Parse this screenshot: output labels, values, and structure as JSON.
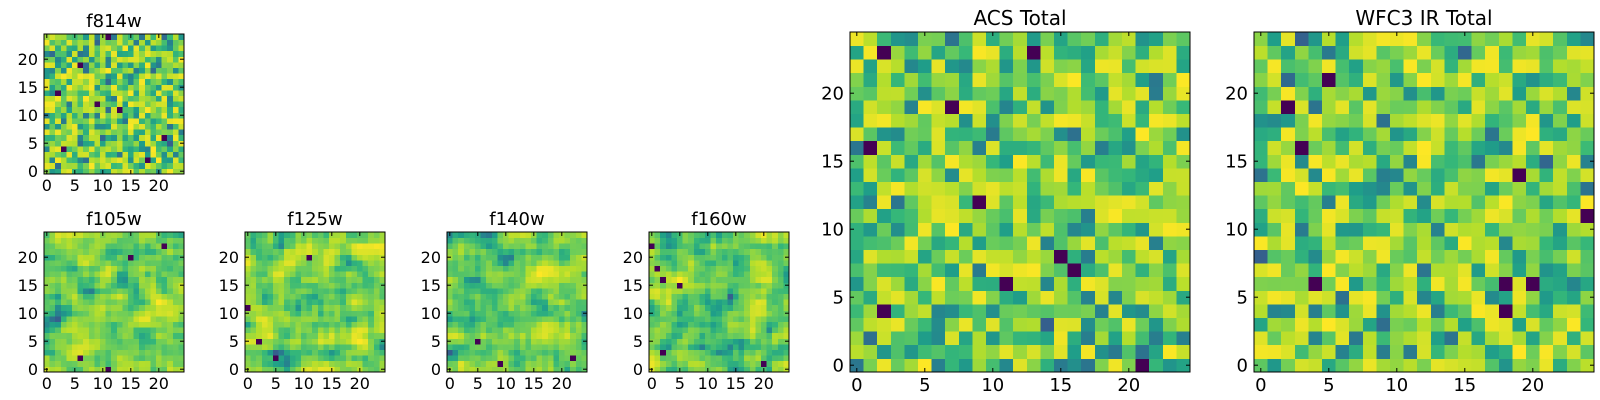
{
  "chart_data": [
    {
      "id": "f814w",
      "type": "heatmap",
      "title": "f814w",
      "xlim": [
        -0.5,
        24.5
      ],
      "ylim": [
        -0.5,
        24.5
      ],
      "xticks": [
        0,
        5,
        10,
        15,
        20
      ],
      "yticks": [
        0,
        5,
        10,
        15,
        20
      ],
      "grid_size": [
        25,
        25
      ],
      "colormap": "viridis",
      "seed": 814,
      "smooth": 0,
      "dark_pixels": [
        [
          3,
          4
        ],
        [
          9,
          12
        ],
        [
          13,
          11
        ],
        [
          21,
          6
        ],
        [
          6,
          19
        ],
        [
          18,
          2
        ],
        [
          11,
          24
        ],
        [
          2,
          14
        ]
      ]
    },
    {
      "id": "f105w",
      "type": "heatmap",
      "title": "f105w",
      "xlim": [
        -0.5,
        24.5
      ],
      "ylim": [
        -0.5,
        24.5
      ],
      "xticks": [
        0,
        5,
        10,
        15,
        20
      ],
      "yticks": [
        0,
        5,
        10,
        15,
        20
      ],
      "grid_size": [
        25,
        25
      ],
      "colormap": "viridis",
      "seed": 105,
      "smooth": 1,
      "dark_pixels": [
        [
          15,
          20
        ],
        [
          6,
          2
        ],
        [
          11,
          0
        ],
        [
          21,
          22
        ]
      ]
    },
    {
      "id": "f125w",
      "type": "heatmap",
      "title": "f125w",
      "xlim": [
        -0.5,
        24.5
      ],
      "ylim": [
        -0.5,
        24.5
      ],
      "xticks": [
        0,
        5,
        10,
        15,
        20
      ],
      "yticks": [
        0,
        5,
        10,
        15,
        20
      ],
      "grid_size": [
        25,
        25
      ],
      "colormap": "viridis",
      "seed": 125,
      "smooth": 1,
      "dark_pixels": [
        [
          11,
          20
        ],
        [
          2,
          5
        ],
        [
          5,
          2
        ],
        [
          0,
          11
        ]
      ]
    },
    {
      "id": "f140w",
      "type": "heatmap",
      "title": "f140w",
      "xlim": [
        -0.5,
        24.5
      ],
      "ylim": [
        -0.5,
        24.5
      ],
      "xticks": [
        0,
        5,
        10,
        15,
        20
      ],
      "yticks": [
        0,
        5,
        10,
        15,
        20
      ],
      "grid_size": [
        25,
        25
      ],
      "colormap": "viridis",
      "seed": 140,
      "smooth": 1,
      "dark_pixels": [
        [
          9,
          1
        ],
        [
          22,
          2
        ],
        [
          5,
          5
        ]
      ]
    },
    {
      "id": "f160w",
      "type": "heatmap",
      "title": "f160w",
      "xlim": [
        -0.5,
        24.5
      ],
      "ylim": [
        -0.5,
        24.5
      ],
      "xticks": [
        0,
        5,
        10,
        15,
        20
      ],
      "yticks": [
        0,
        5,
        10,
        15,
        20
      ],
      "grid_size": [
        25,
        25
      ],
      "colormap": "viridis",
      "seed": 160,
      "smooth": 1,
      "dark_pixels": [
        [
          1,
          18
        ],
        [
          2,
          16
        ],
        [
          5,
          15
        ],
        [
          2,
          3
        ],
        [
          20,
          1
        ],
        [
          0,
          22
        ]
      ]
    },
    {
      "id": "acs-total",
      "type": "heatmap",
      "title": "ACS Total",
      "xlim": [
        -0.5,
        24.5
      ],
      "ylim": [
        -0.5,
        24.5
      ],
      "xticks": [
        0,
        5,
        10,
        15,
        20
      ],
      "yticks": [
        0,
        5,
        10,
        15,
        20
      ],
      "grid_size": [
        25,
        25
      ],
      "colormap": "viridis",
      "seed": 2020,
      "smooth": 0,
      "dark_pixels": [
        [
          2,
          23
        ],
        [
          13,
          23
        ],
        [
          7,
          19
        ],
        [
          1,
          16
        ],
        [
          9,
          12
        ],
        [
          15,
          8
        ],
        [
          16,
          7
        ],
        [
          11,
          6
        ],
        [
          2,
          4
        ],
        [
          21,
          0
        ]
      ]
    },
    {
      "id": "wfc3-ir-total",
      "type": "heatmap",
      "title": "WFC3 IR Total",
      "xlim": [
        -0.5,
        24.5
      ],
      "ylim": [
        -0.5,
        24.5
      ],
      "xticks": [
        0,
        5,
        10,
        15,
        20
      ],
      "yticks": [
        0,
        5,
        10,
        15,
        20
      ],
      "grid_size": [
        25,
        25
      ],
      "colormap": "viridis",
      "seed": 3030,
      "smooth": 0,
      "dark_pixels": [
        [
          5,
          21
        ],
        [
          2,
          19
        ],
        [
          3,
          16
        ],
        [
          19,
          14
        ],
        [
          24,
          11
        ],
        [
          4,
          6
        ],
        [
          18,
          4
        ],
        [
          20,
          6
        ],
        [
          18,
          6
        ]
      ]
    }
  ]
}
